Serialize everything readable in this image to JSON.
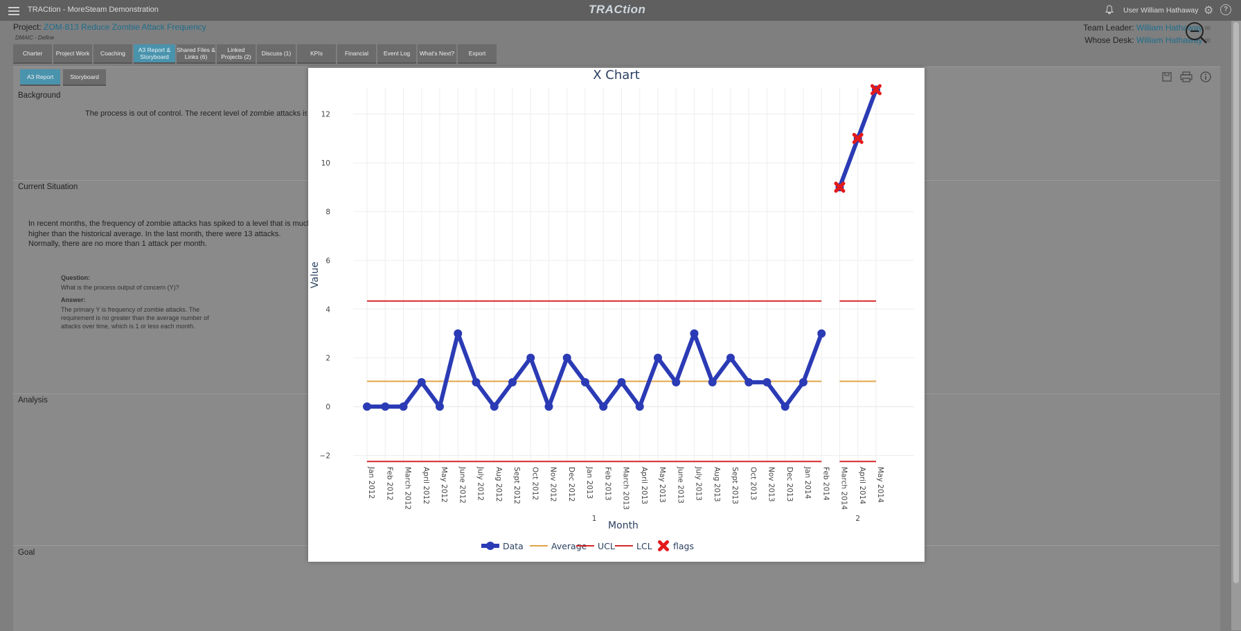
{
  "app": {
    "title": "TRACtion - MoreSteam Demonstration",
    "logo": "TRACtion",
    "user": "User William Hathaway"
  },
  "project": {
    "label": "Project: ",
    "name": "ZOM-813 Reduce Zombie Attack Frequency",
    "phase": "DMAIC - Define",
    "team_leader_label": "Team Leader:",
    "team_leader": "William Hathaway",
    "whose_desk_label": "Whose Desk:",
    "whose_desk": "William Hathaway"
  },
  "tabs": [
    {
      "label": "Charter"
    },
    {
      "label": "Project Work"
    },
    {
      "label": "Coaching"
    },
    {
      "label": "A3 Report & Storyboard",
      "active": true
    },
    {
      "label": "Shared Files & Links (6)"
    },
    {
      "label": "Linked Projects (2)"
    },
    {
      "label": "Discuss (1)"
    },
    {
      "label": "KPIs"
    },
    {
      "label": "Financial"
    },
    {
      "label": "Event Log"
    },
    {
      "label": "What's Next?"
    },
    {
      "label": "Export"
    }
  ],
  "subtabs": [
    {
      "label": "A3 Report",
      "active": true
    },
    {
      "label": "Storyboard"
    }
  ],
  "sections": {
    "background": {
      "label": "Background",
      "text": "The process is out of control.  The recent level of zombie attacks is"
    },
    "current_situation": {
      "label": "Current Situation",
      "text": "In recent months, the frequency of zombie attacks has spiked to a level that is much higher than the historical average.  In the last month, there were 13 attacks. Normally, there are no more than 1 attack per month.",
      "question_label": "Question:",
      "question": "What is the process output of concern (Y)?",
      "answer_label": "Answer:",
      "answer": "The primary Y is frequency of zombie attacks.  The requirement is no greater than the average number of attacks over time, which is 1 or less each month."
    },
    "analysis": {
      "label": "Analysis"
    },
    "goal": {
      "label": "Goal"
    }
  },
  "icons": [
    "menu-icon",
    "bell-icon",
    "gear-icon",
    "help-icon",
    "zoom-out-icon",
    "save-icon",
    "print-icon",
    "info-icon",
    "mail-icon"
  ],
  "colors": {
    "data": "#2b3bb5",
    "average": "#e0a44a",
    "limits": "#d62728",
    "flags": "#e31a1c",
    "accent": "#4a93ad"
  },
  "chart_data": {
    "type": "line",
    "title": "X Chart",
    "xlabel": "Month",
    "ylabel": "Value",
    "ylim": [
      -2.3,
      13.1
    ],
    "yticks": [
      "12",
      "10",
      "8",
      "6",
      "4",
      "2",
      "0",
      "−2"
    ],
    "phases": [
      {
        "label": "1",
        "categories": [
          "Jan 2012",
          "Feb 2012",
          "March 2012",
          "April 2012",
          "May 2012",
          "June 2012",
          "July 2012",
          "Aug 2012",
          "Sept 2012",
          "Oct 2012",
          "Nov 2012",
          "Dec 2012",
          "Jan 2013",
          "Feb 2013",
          "March 2013",
          "April 2013",
          "May 2013",
          "June 2013",
          "July 2013",
          "Aug 2013",
          "Sept 2013",
          "Oct 2013",
          "Nov 2013",
          "Dec 2013",
          "Jan 2014",
          "Feb 2014"
        ],
        "values": [
          0,
          0,
          0,
          1,
          0,
          3,
          1,
          0,
          1,
          2,
          0,
          2,
          1,
          0,
          1,
          0,
          2,
          1,
          3,
          1,
          2,
          1,
          1,
          0,
          1,
          3
        ],
        "average": 1.04,
        "ucl": 4.33,
        "lcl": -2.25
      },
      {
        "label": "2",
        "categories": [
          "March 2014",
          "April 2014",
          "May 2014"
        ],
        "values": [
          9,
          11,
          13
        ],
        "average": 1.04,
        "ucl": 4.33,
        "lcl": -2.25,
        "flags": [
          9,
          11,
          13
        ]
      }
    ],
    "legend": [
      "Data",
      "Average",
      "UCL",
      "LCL",
      "flags"
    ],
    "legend_position": "bottom"
  }
}
